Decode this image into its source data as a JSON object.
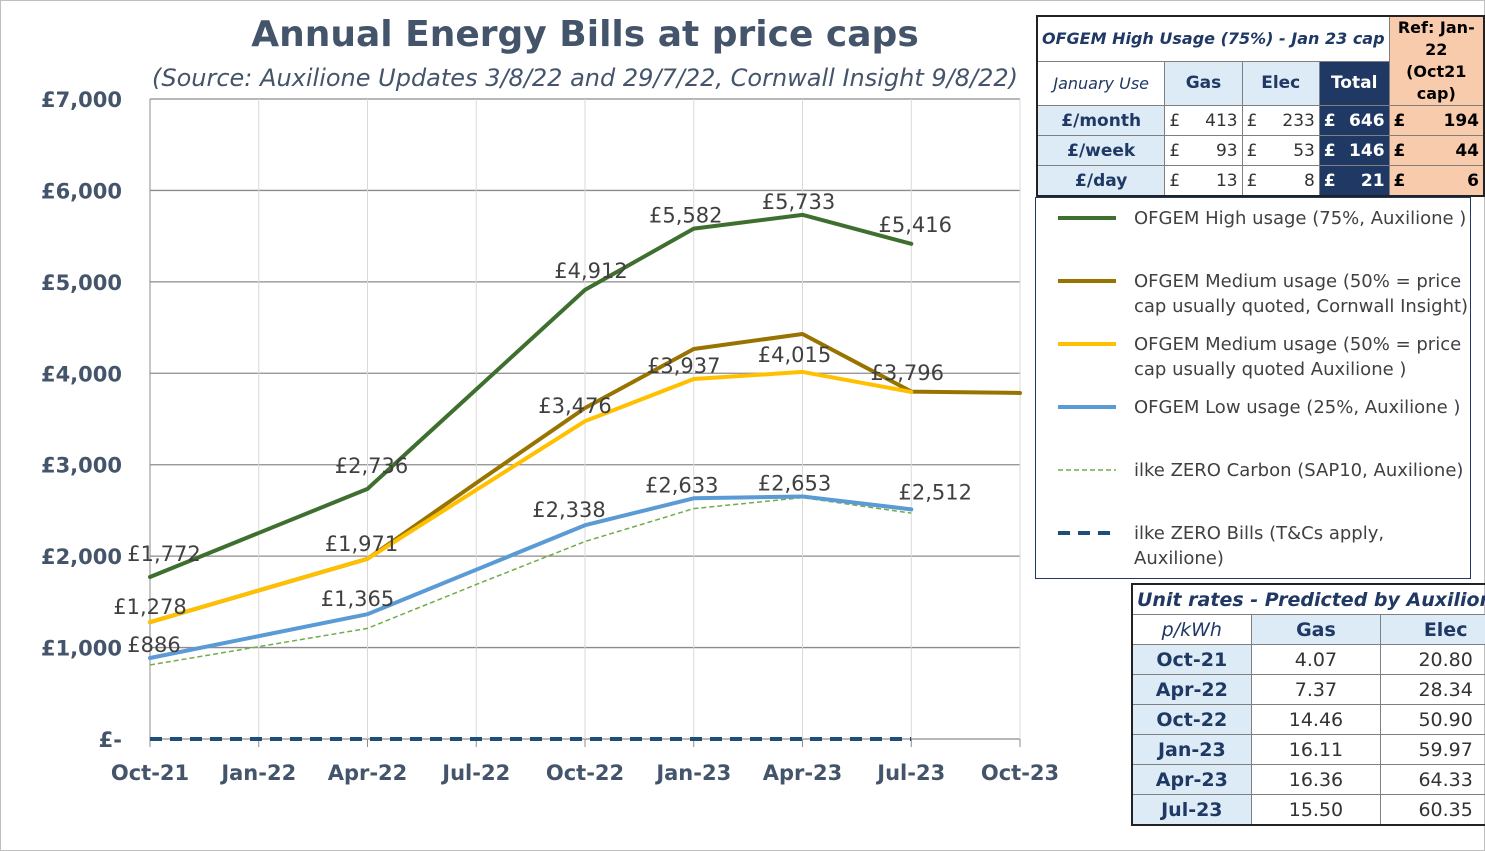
{
  "title": "Annual Energy Bills at price caps",
  "subtitle": "(Source: Auxilione Updates 3/8/22 and 29/7/22, Cornwall Insight 9/8/22)",
  "chart_data": {
    "type": "line",
    "x": [
      "Oct-21",
      "Jan-22",
      "Apr-22",
      "Jul-22",
      "Oct-22",
      "Jan-23",
      "Apr-23",
      "Jul-23",
      "Oct-23"
    ],
    "ylim": [
      0,
      7000
    ],
    "y_ticks": [
      "£-",
      "£1,000",
      "£2,000",
      "£3,000",
      "£4,000",
      "£5,000",
      "£6,000",
      "£7,000"
    ],
    "y_tick_values": [
      0,
      1000,
      2000,
      3000,
      4000,
      5000,
      6000,
      7000
    ],
    "grid": true,
    "legend_position": "right",
    "series": [
      {
        "name": "OFGEM High usage (75%, Auxilione )",
        "color": "#3f6f2f",
        "width": 4,
        "dash": "",
        "values": [
          1772,
          2254,
          2736,
          3824,
          4912,
          5582,
          5733,
          5416,
          null
        ],
        "labels": [
          "£1,772",
          null,
          "£2,736",
          null,
          "£4,912",
          "£5,582",
          "£5,733",
          "£5,416",
          null
        ]
      },
      {
        "name": "OFGEM Medium usage (50% = price cap usually quoted, Cornwall Insight)",
        "color": "#997300",
        "width": 4,
        "dash": "",
        "values": [
          1278,
          1625,
          1971,
          2800,
          3620,
          4266,
          4430,
          3800,
          3785
        ],
        "labels": [
          null,
          null,
          null,
          null,
          null,
          null,
          null,
          null,
          null
        ]
      },
      {
        "name": "OFGEM Medium usage (50% = price cap usually quoted Auxilione )",
        "color": "#ffc000",
        "width": 4,
        "dash": "",
        "values": [
          1278,
          1625,
          1971,
          2724,
          3476,
          3937,
          4015,
          3796,
          null
        ],
        "labels": [
          "£1,278",
          null,
          "£1,971",
          null,
          "£3,476",
          "£3,937",
          "£4,015",
          "£3,796",
          null
        ]
      },
      {
        "name": "OFGEM Low usage (25%, Auxilione )",
        "color": "#5b9bd5",
        "width": 4,
        "dash": "",
        "values": [
          886,
          1125,
          1365,
          1852,
          2338,
          2633,
          2653,
          2512,
          null
        ],
        "labels": [
          "£886",
          null,
          "£1,365",
          null,
          "£2,338",
          "£2,633",
          "£2,653",
          "£2,512",
          null
        ]
      },
      {
        "name": "ilke ZERO Carbon (SAP10, Auxilione)",
        "color": "#70ad47",
        "width": 1.5,
        "dash": "5,3",
        "values": [
          810,
          1010,
          1210,
          1690,
          2160,
          2520,
          2640,
          2470,
          null
        ],
        "labels": [
          null,
          null,
          null,
          null,
          null,
          null,
          null,
          null,
          null
        ]
      },
      {
        "name": "ilke ZERO Bills (T&Cs apply, Auxilione)",
        "color": "#1f4e79",
        "width": 4,
        "dash": "12,8",
        "values": [
          0,
          0,
          0,
          0,
          0,
          0,
          0,
          0,
          null
        ],
        "labels": [
          null,
          null,
          null,
          null,
          null,
          null,
          null,
          null,
          null
        ]
      }
    ]
  },
  "bills_table": {
    "caption": "OFGEM High Usage (75%) - Jan 23 cap",
    "ref_header": "Ref: Jan-22 (Oct21 cap)",
    "use_label": "January Use",
    "col_gas": "Gas",
    "col_elec": "Elec",
    "col_total": "Total",
    "currency": "£",
    "rows": [
      {
        "label": "£/month",
        "gas": "413",
        "elec": "233",
        "total": "646",
        "ref": "194"
      },
      {
        "label": "£/week",
        "gas": "93",
        "elec": "53",
        "total": "146",
        "ref": "44"
      },
      {
        "label": "£/day",
        "gas": "13",
        "elec": "8",
        "total": "21",
        "ref": "6"
      }
    ]
  },
  "unit_table": {
    "caption": "Unit rates - Predicted by Auxilione",
    "unit_label": "p/kWh",
    "col_gas": "Gas",
    "col_elec": "Elec",
    "rows": [
      {
        "period": "Oct-21",
        "gas": "4.07",
        "elec": "20.80"
      },
      {
        "period": "Apr-22",
        "gas": "7.37",
        "elec": "28.34"
      },
      {
        "period": "Oct-22",
        "gas": "14.46",
        "elec": "50.90"
      },
      {
        "period": "Jan-23",
        "gas": "16.11",
        "elec": "59.97"
      },
      {
        "period": "Apr-23",
        "gas": "16.36",
        "elec": "64.33"
      },
      {
        "period": "Jul-23",
        "gas": "15.50",
        "elec": "60.35"
      }
    ]
  }
}
